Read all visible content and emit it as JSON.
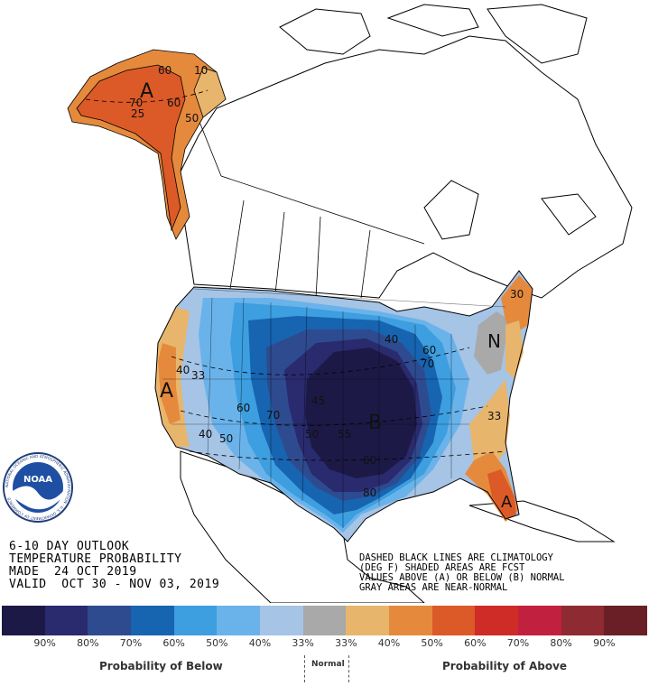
{
  "outlook": {
    "title_line": "6-10 DAY OUTLOOK",
    "subtitle_line": "TEMPERATURE PROBABILITY",
    "made_line": "MADE  24 OCT 2019",
    "valid_line": "VALID  OCT 30 - NOV 03, 2019"
  },
  "notes": [
    "DASHED BLACK LINES ARE CLIMATOLOGY",
    "(DEG F) SHADED AREAS ARE FCST",
    "VALUES ABOVE (A) OR BELOW (B) NORMAL",
    "GRAY AREAS ARE NEAR-NORMAL"
  ],
  "map_labels": {
    "alaska_category": "A",
    "west_coast_category": "A",
    "central_category": "B",
    "northeast_category": "N",
    "florida_category": "A",
    "contours": [
      "60",
      "10",
      "70",
      "60",
      "50",
      "25",
      "40",
      "33",
      "60",
      "70",
      "40",
      "50",
      "45",
      "50",
      "55",
      "60",
      "80",
      "40",
      "60",
      "70",
      "33",
      "30"
    ]
  },
  "legend": {
    "colors": [
      "#1d1947",
      "#2a2a6e",
      "#2e4b8f",
      "#1764b0",
      "#3d9ee0",
      "#6ab3ea",
      "#a5c4e6",
      "#a9a9a9",
      "#e8b56c",
      "#e58a3c",
      "#db5a27",
      "#cf2b27",
      "#c2203f",
      "#8e2a31",
      "#6a1f26"
    ],
    "percents": [
      "90%",
      "80%",
      "70%",
      "60%",
      "50%",
      "40%",
      "33%",
      "33%",
      "40%",
      "50%",
      "60%",
      "70%",
      "80%",
      "90%"
    ],
    "below_label": "Probability of Below",
    "normal_label": "Normal",
    "above_label": "Probability of Above"
  },
  "logo": {
    "text": "NOAA",
    "ring_text": "NATIONAL OCEANIC AND ATMOSPHERIC ADMINISTRATION · U.S. DEPARTMENT OF COMMERCE"
  }
}
